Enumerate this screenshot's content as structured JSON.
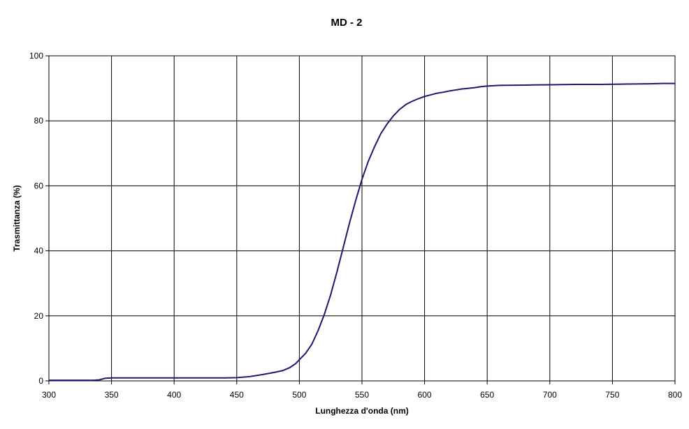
{
  "chart_data": {
    "type": "line",
    "title": "MD - 2",
    "xlabel": "Lunghezza d'onda   (nm)",
    "ylabel": "Trasmittanza   (%)",
    "xlim": [
      300,
      800
    ],
    "ylim": [
      0,
      100
    ],
    "xticks": [
      300,
      350,
      400,
      450,
      500,
      550,
      600,
      650,
      700,
      750,
      800
    ],
    "yticks": [
      0,
      20,
      40,
      60,
      80,
      100
    ],
    "grid": true,
    "legend": "none",
    "series": [
      {
        "color": "#1a1a6e",
        "x": [
          300,
          320,
          335,
          340,
          345,
          350,
          400,
          440,
          450,
          460,
          470,
          480,
          487,
          492,
          497,
          500,
          505,
          510,
          515,
          520,
          525,
          530,
          535,
          540,
          545,
          550,
          555,
          560,
          565,
          570,
          575,
          580,
          585,
          590,
          595,
          600,
          605,
          610,
          615,
          620,
          625,
          630,
          635,
          640,
          645,
          650,
          660,
          680,
          700,
          720,
          740,
          760,
          780,
          790,
          800
        ],
        "y": [
          0.2,
          0.2,
          0.2,
          0.3,
          0.8,
          0.9,
          0.9,
          0.9,
          1.0,
          1.3,
          1.9,
          2.6,
          3.2,
          4.0,
          5.3,
          6.5,
          8.5,
          11.3,
          15.5,
          20.5,
          26.5,
          33.5,
          41.0,
          48.5,
          55.5,
          62.0,
          67.5,
          72.0,
          76.0,
          79.0,
          81.5,
          83.5,
          85.0,
          86.0,
          86.8,
          87.5,
          88.0,
          88.5,
          88.8,
          89.2,
          89.5,
          89.8,
          90.0,
          90.2,
          90.5,
          90.7,
          90.9,
          91.0,
          91.1,
          91.2,
          91.2,
          91.3,
          91.4,
          91.5,
          91.5
        ]
      }
    ]
  }
}
